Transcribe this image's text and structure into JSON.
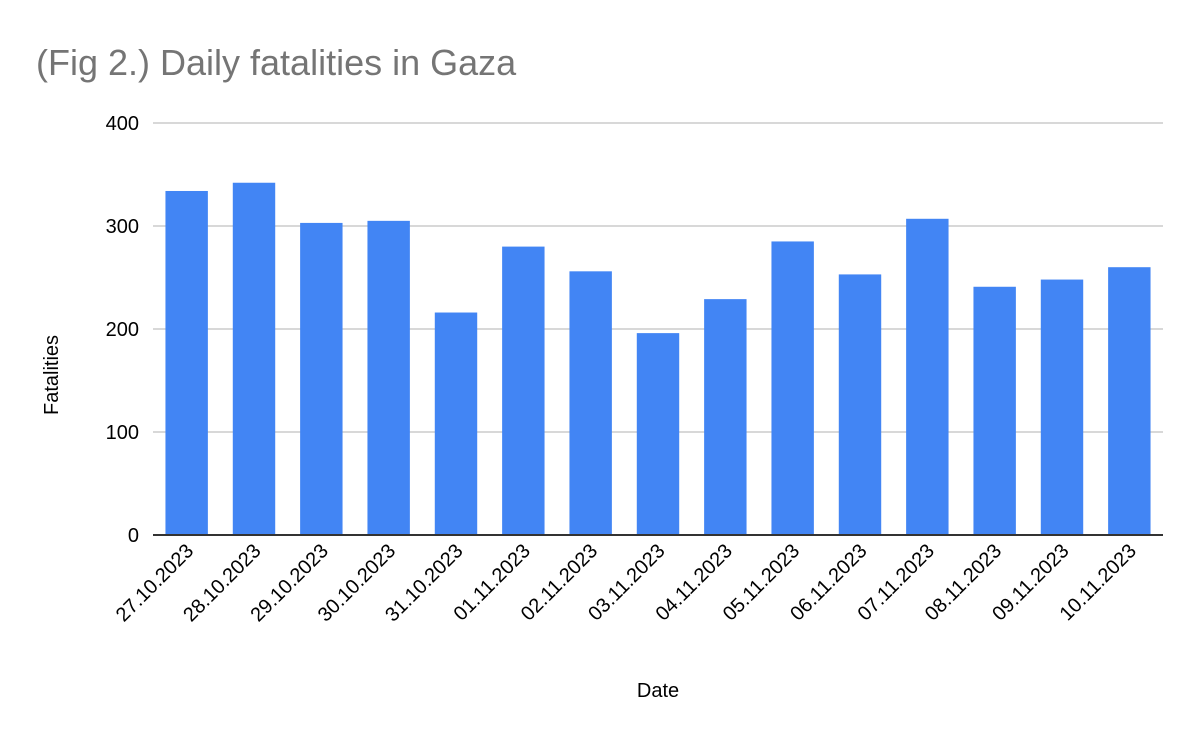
{
  "chart_data": {
    "type": "bar",
    "title": "(Fig 2.) Daily fatalities in Gaza",
    "xlabel": "Date",
    "ylabel": "Fatalities",
    "categories": [
      "27.10.2023",
      "28.10.2023",
      "29.10.2023",
      "30.10.2023",
      "31.10.2023",
      "01.11.2023",
      "02.11.2023",
      "03.11.2023",
      "04.11.2023",
      "05.11.2023",
      "06.11.2023",
      "07.11.2023",
      "08.11.2023",
      "09.11.2023",
      "10.11.2023"
    ],
    "values": [
      334,
      342,
      303,
      305,
      216,
      280,
      256,
      196,
      229,
      285,
      253,
      307,
      241,
      248,
      260
    ],
    "ylim": [
      0,
      400
    ],
    "yticks": [
      0,
      100,
      200,
      300,
      400
    ],
    "grid": true,
    "legend": "none",
    "colors": {
      "bar": "#4285f4",
      "grid": "#cccccc",
      "axis": "#333333",
      "title": "#757575"
    }
  }
}
